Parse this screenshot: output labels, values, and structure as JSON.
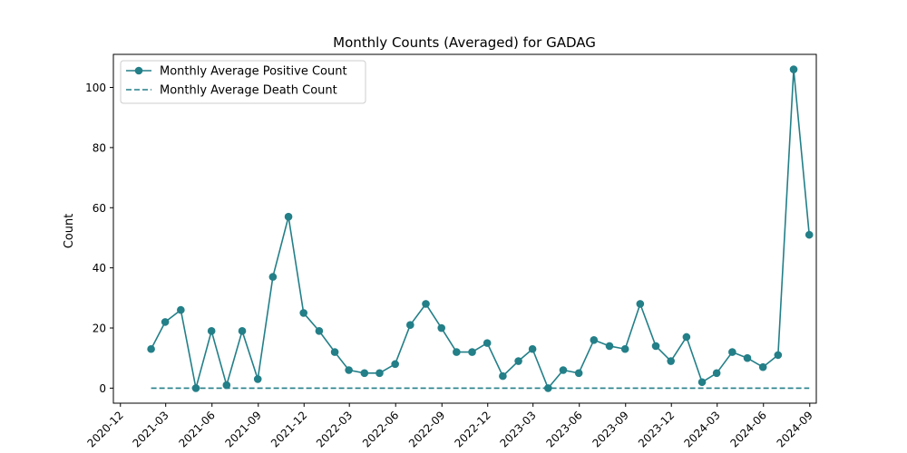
{
  "chart_data": {
    "type": "line",
    "title": "Monthly Counts (Averaged) for GADAG",
    "xlabel": "",
    "ylabel": "Count",
    "x": [
      "2021-01",
      "2021-02",
      "2021-03",
      "2021-04",
      "2021-05",
      "2021-06",
      "2021-07",
      "2021-08",
      "2021-09",
      "2021-10",
      "2021-11",
      "2021-12",
      "2022-01",
      "2022-02",
      "2022-03",
      "2022-04",
      "2022-05",
      "2022-06",
      "2022-07",
      "2022-08",
      "2022-09",
      "2022-10",
      "2022-11",
      "2022-12",
      "2023-01",
      "2023-02",
      "2023-03",
      "2023-04",
      "2023-05",
      "2023-06",
      "2023-07",
      "2023-08",
      "2023-09",
      "2023-10",
      "2023-11",
      "2023-12",
      "2024-01",
      "2024-02",
      "2024-03",
      "2024-04",
      "2024-05",
      "2024-06",
      "2024-07",
      "2024-08"
    ],
    "series": [
      {
        "name": "Monthly Average Positive Count",
        "style": "line-marker",
        "color": "#237f88",
        "values": [
          13,
          22,
          26,
          0,
          19,
          1,
          19,
          3,
          37,
          57,
          25,
          19,
          12,
          6,
          5,
          5,
          8,
          21,
          28,
          20,
          12,
          12,
          15,
          4,
          9,
          13,
          0,
          6,
          5,
          16,
          14,
          13,
          28,
          14,
          9,
          17,
          2,
          5,
          12,
          10,
          7,
          11,
          106,
          51
        ]
      },
      {
        "name": "Monthly Average Death Count",
        "style": "dashed",
        "color": "#237f88",
        "values": [
          0,
          0,
          0,
          0,
          0,
          0,
          0,
          0,
          0,
          0,
          0,
          0,
          0,
          0,
          0,
          0,
          0,
          0,
          0,
          0,
          0,
          0,
          0,
          0,
          0,
          0,
          0,
          0,
          0,
          0,
          0,
          0,
          0,
          0,
          0,
          0,
          0,
          0,
          0,
          0,
          0,
          0,
          0,
          0
        ]
      }
    ],
    "xlim": [
      "2020-11-17",
      "2024-09-14"
    ],
    "ylim": [
      -5,
      111
    ],
    "xticks": [
      "2020-12",
      "2021-03",
      "2021-06",
      "2021-09",
      "2021-12",
      "2022-03",
      "2022-06",
      "2022-09",
      "2022-12",
      "2023-03",
      "2023-06",
      "2023-09",
      "2023-12",
      "2024-03",
      "2024-06",
      "2024-09"
    ],
    "yticks": [
      0,
      20,
      40,
      60,
      80,
      100
    ],
    "legend": "top-left",
    "grid": false
  }
}
